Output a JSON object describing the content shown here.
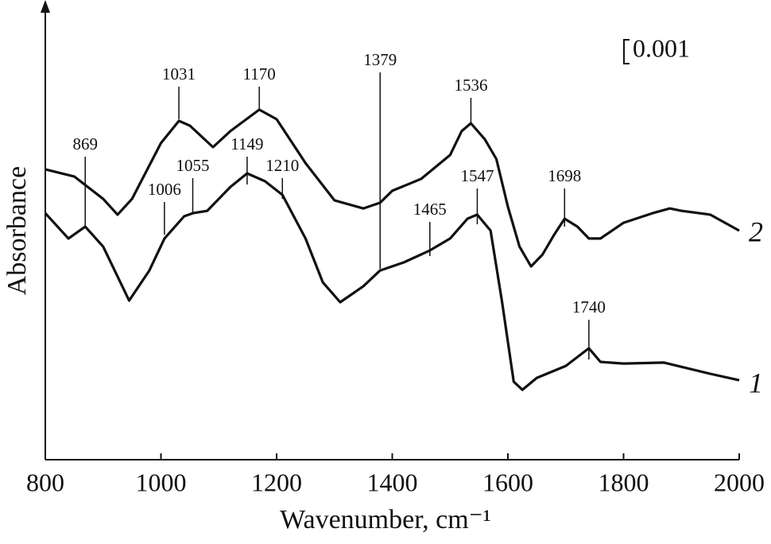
{
  "chart_data": {
    "type": "line",
    "xlabel": "Wavenumber, cm⁻¹",
    "ylabel": "Absorbance",
    "xlim": [
      800,
      2000
    ],
    "xticks": [
      800,
      1000,
      1200,
      1400,
      1600,
      1800,
      2000
    ],
    "ylim": [
      0,
      0.019
    ],
    "scale_bar": 0.001,
    "series": [
      {
        "name": "1",
        "color": "#111111",
        "x": [
          800,
          840,
          869,
          900,
          945,
          980,
          1006,
          1040,
          1055,
          1080,
          1120,
          1149,
          1180,
          1210,
          1250,
          1280,
          1310,
          1350,
          1379,
          1420,
          1465,
          1500,
          1530,
          1547,
          1570,
          1590,
          1610,
          1625,
          1650,
          1700,
          1740,
          1760,
          1800,
          1870,
          1950,
          2000
        ],
        "values": [
          0.01033,
          0.00927,
          0.00977,
          0.00893,
          0.00667,
          0.00793,
          0.00927,
          0.0102,
          0.01033,
          0.01043,
          0.01143,
          0.012,
          0.01167,
          0.0111,
          0.00927,
          0.00743,
          0.0066,
          0.00727,
          0.00793,
          0.00827,
          0.00877,
          0.00927,
          0.0101,
          0.01027,
          0.0096,
          0.0066,
          0.00327,
          0.00293,
          0.00343,
          0.00393,
          0.00467,
          0.0041,
          0.00403,
          0.00407,
          0.0036,
          0.00333
        ],
        "peaks": [
          869,
          1006,
          1055,
          1149,
          1210,
          1379,
          1465,
          1547,
          1740
        ]
      },
      {
        "name": "2",
        "color": "#111111",
        "x": [
          800,
          850,
          900,
          925,
          950,
          1000,
          1031,
          1050,
          1090,
          1120,
          1170,
          1200,
          1250,
          1300,
          1350,
          1379,
          1400,
          1450,
          1500,
          1520,
          1536,
          1560,
          1580,
          1600,
          1620,
          1640,
          1660,
          1680,
          1698,
          1720,
          1740,
          1760,
          1800,
          1850,
          1880,
          1900,
          1950,
          2000
        ],
        "values": [
          0.01217,
          0.01187,
          0.01093,
          0.01027,
          0.01093,
          0.01327,
          0.0142,
          0.014,
          0.0131,
          0.01377,
          0.01467,
          0.01427,
          0.01243,
          0.01087,
          0.01053,
          0.01077,
          0.01127,
          0.01177,
          0.01277,
          0.01377,
          0.0141,
          0.01343,
          0.0126,
          0.0106,
          0.00893,
          0.0081,
          0.0086,
          0.00943,
          0.0101,
          0.00977,
          0.00927,
          0.00927,
          0.00993,
          0.01033,
          0.01053,
          0.01043,
          0.01027,
          0.0096
        ],
        "peaks": [
          1031,
          1170,
          1536,
          1698
        ]
      }
    ]
  }
}
